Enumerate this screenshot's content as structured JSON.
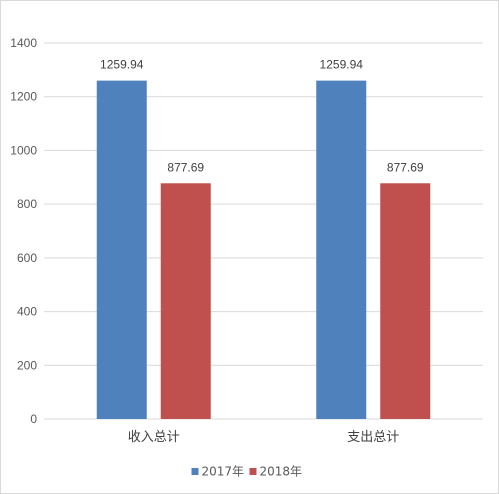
{
  "chart_data": {
    "type": "bar",
    "categories": [
      "收入总计",
      "支出总计"
    ],
    "series": [
      {
        "name": "2017年",
        "values": [
          1259.94,
          1259.94
        ],
        "color": "#4f81bd"
      },
      {
        "name": "2018年",
        "values": [
          877.69,
          877.69
        ],
        "color": "#c0504d"
      }
    ],
    "data_labels": [
      [
        "1259.94",
        "1259.94"
      ],
      [
        "877.69",
        "877.69"
      ]
    ],
    "yticks": [
      "0",
      "200",
      "400",
      "600",
      "800",
      "1000",
      "1200",
      "1400"
    ],
    "ylim": [
      0,
      1400
    ],
    "grid": true,
    "legend_position": "bottom",
    "gridline_color": "#d9d9d9"
  }
}
